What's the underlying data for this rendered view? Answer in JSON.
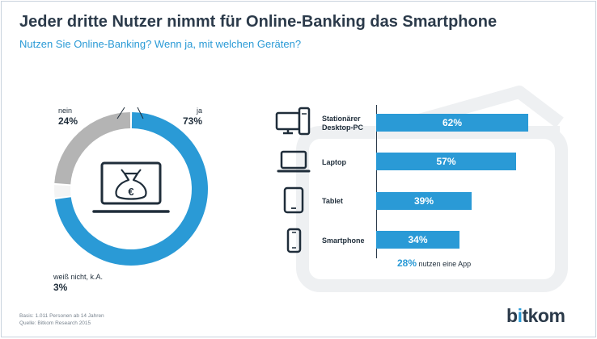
{
  "header": {
    "title": "Jeder dritte Nutzer nimmt für Online-Banking das Smartphone",
    "subtitle": "Nutzen Sie Online-Banking? Wenn ja, mit welchen Geräten?"
  },
  "chart_data": [
    {
      "type": "pie",
      "variant": "donut",
      "categories": [
        "ja",
        "weiß nicht, k.A.",
        "nein"
      ],
      "values": [
        73,
        3,
        24
      ],
      "labels": [
        "73%",
        "3%",
        "24%"
      ],
      "colors": [
        "#2a9ad6",
        "#ffffff",
        "#b4b4b4"
      ],
      "center_icon": "laptop-with-euro-moneybag-icon"
    },
    {
      "type": "bar",
      "orientation": "horizontal",
      "categories": [
        "Stationärer\nDesktop-PC",
        "Laptop",
        "Tablet",
        "Smartphone"
      ],
      "values": [
        62,
        57,
        39,
        34
      ],
      "labels": [
        "62%",
        "57%",
        "39%",
        "34%"
      ],
      "icons": [
        "desktop-pc-icon",
        "laptop-icon",
        "tablet-icon",
        "smartphone-icon"
      ],
      "color": "#2a9ad6",
      "annotation": {
        "value": "28%",
        "text": "nutzen eine App"
      }
    }
  ],
  "footer": {
    "line1": "Basis: 1.011 Personen ab 14 Jahren",
    "line2": "Quelle: Bitkom Research 2015"
  },
  "logo": {
    "part1": "b",
    "part2": "i",
    "part3": "tkom"
  }
}
